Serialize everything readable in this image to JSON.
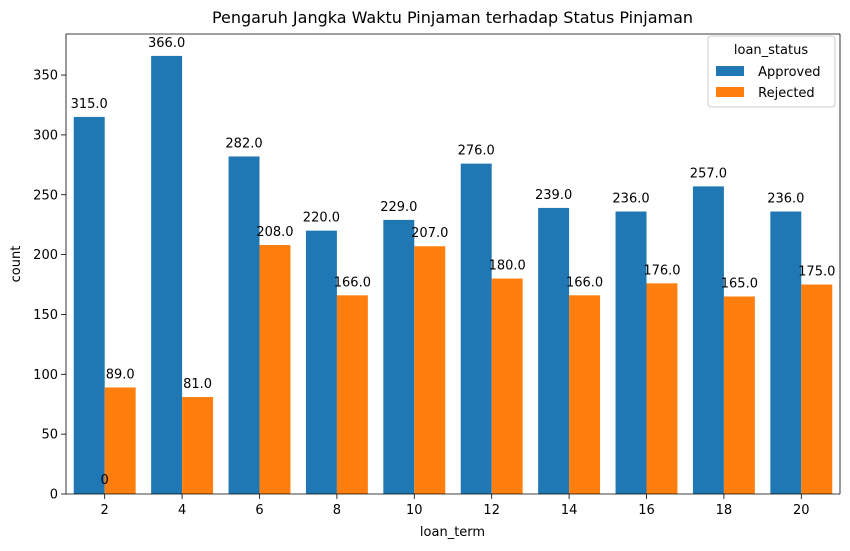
{
  "chart_data": {
    "type": "bar",
    "title": "Pengaruh Jangka Waktu Pinjaman terhadap Status Pinjaman",
    "xlabel": "loan_term",
    "ylabel": "count",
    "categories": [
      "2",
      "4",
      "6",
      "8",
      "10",
      "12",
      "14",
      "16",
      "18",
      "20"
    ],
    "series": [
      {
        "name": " Approved",
        "color": "#1f77b4",
        "values": [
          315,
          366,
          282,
          220,
          229,
          276,
          239,
          236,
          257,
          236
        ],
        "labels": [
          "315.0",
          "366.0",
          "282.0",
          "220.0",
          "229.0",
          "276.0",
          "239.0",
          "236.0",
          "257.0",
          "236.0"
        ]
      },
      {
        "name": " Rejected",
        "color": "#ff7f0e",
        "values": [
          89,
          81,
          208,
          166,
          207,
          180,
          166,
          176,
          165,
          175
        ],
        "labels": [
          "89.0",
          "81.0",
          "208.0",
          "166.0",
          "207.0",
          "180.0",
          "166.0",
          "176.0",
          "165.0",
          "175.0"
        ]
      }
    ],
    "extra_annotation": "0",
    "ylim": [
      0,
      384.3
    ],
    "yticks": [
      "0",
      "50",
      "100",
      "150",
      "200",
      "250",
      "300",
      "350"
    ],
    "legend": {
      "title": "loan_status",
      "position": "top-right"
    },
    "grid": false
  }
}
